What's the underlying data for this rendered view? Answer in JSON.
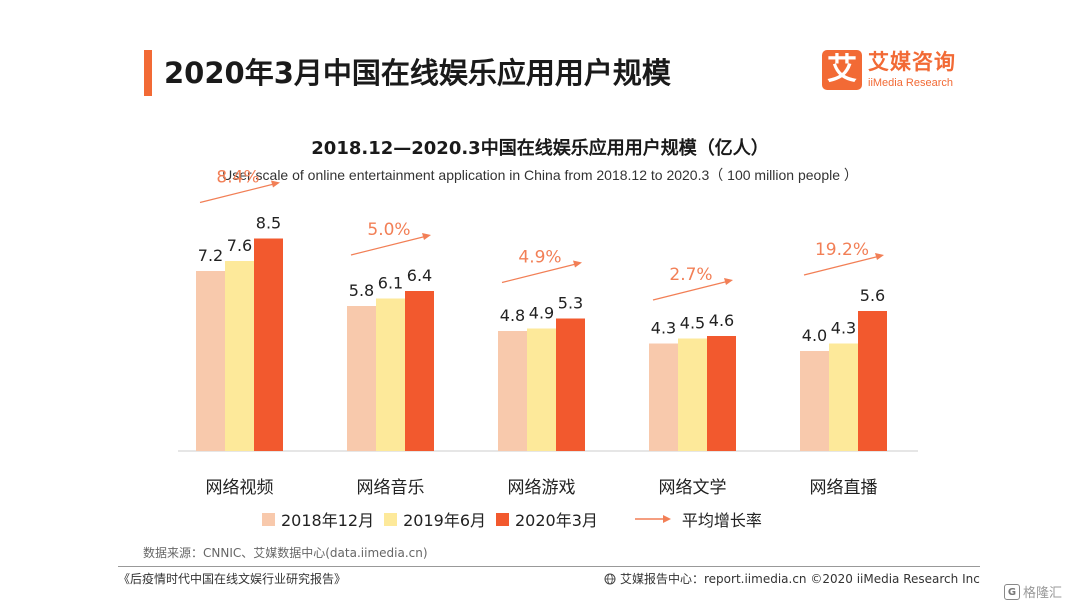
{
  "colors": {
    "accent": "#f26a35",
    "series": [
      "#f8c9ac",
      "#fde99a",
      "#f2592e"
    ],
    "growth": "#f27f56",
    "axis": "#cccccc"
  },
  "header": {
    "title": "2020年3月中国在线娱乐应用用户规模",
    "logo": {
      "mark": "艾",
      "name_cn": "艾媒咨询",
      "name_en": "iiMedia Research"
    }
  },
  "chart_data": {
    "type": "bar",
    "title": "2018.12—2020.3中国在线娱乐应用用户规模（亿人）",
    "subtitle": "User scale of online entertainment application in China  from 2018.12 to 2020.3（ 100 million people ）",
    "categories": [
      "网络视频",
      "网络音乐",
      "网络游戏",
      "网络文学",
      "网络直播"
    ],
    "series": [
      {
        "name": "2018年12月",
        "values": [
          7.2,
          5.8,
          4.8,
          4.3,
          4.0
        ]
      },
      {
        "name": "2019年6月",
        "values": [
          7.6,
          6.1,
          4.9,
          4.5,
          4.3
        ]
      },
      {
        "name": "2020年3月",
        "values": [
          8.5,
          6.4,
          5.3,
          4.6,
          5.6
        ]
      }
    ],
    "growth": {
      "name": "平均增长率",
      "values": [
        "8.4%",
        "5.0%",
        "4.9%",
        "2.7%",
        "19.2%"
      ]
    },
    "ylim": [
      0,
      10
    ],
    "grid": false,
    "legend_position": "bottom"
  },
  "footer": {
    "source": "数据来源：CNNIC、艾媒数据中心(data.iimedia.cn)",
    "report": "《后疫情时代中国在线文娱行业研究报告》",
    "site": "艾媒报告中心：report.iimedia.cn  ©2020  iiMedia Research  Inc",
    "watermark": "格隆汇"
  }
}
